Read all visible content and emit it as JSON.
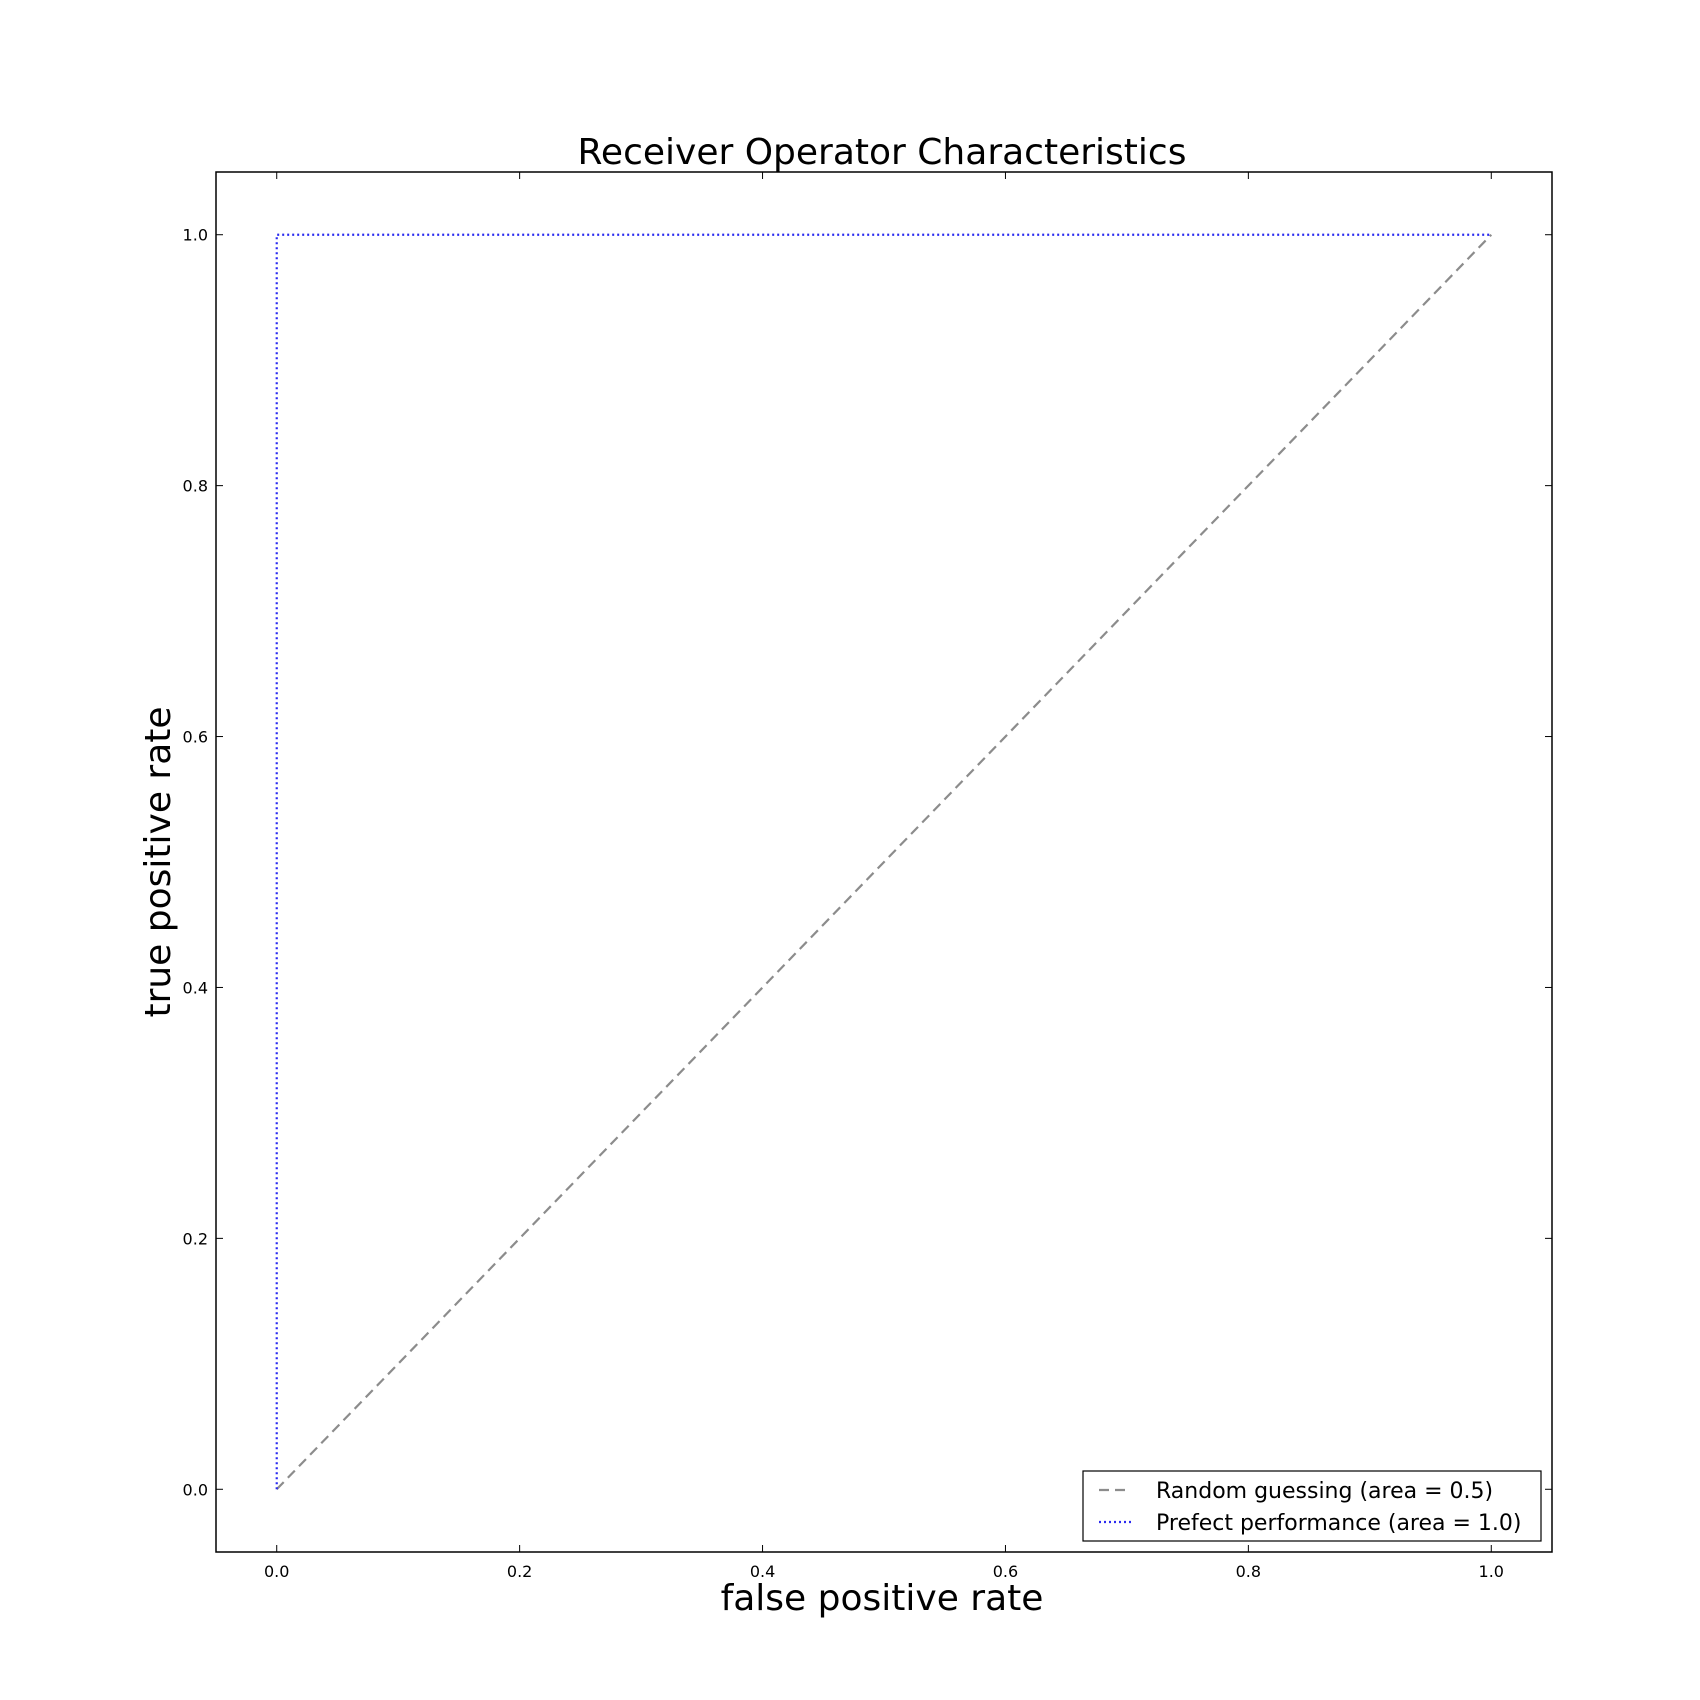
{
  "chart_data": {
    "type": "line",
    "title": "Receiver Operator Characteristics",
    "xlabel": "false positive rate",
    "ylabel": "true positive rate",
    "xlim": [
      -0.05,
      1.05
    ],
    "ylim": [
      -0.05,
      1.05
    ],
    "xticks": [
      {
        "value": 0.0,
        "label": "0.0"
      },
      {
        "value": 0.2,
        "label": "0.2"
      },
      {
        "value": 0.4,
        "label": "0.4"
      },
      {
        "value": 0.6,
        "label": "0.6"
      },
      {
        "value": 0.8,
        "label": "0.8"
      },
      {
        "value": 1.0,
        "label": "1.0"
      }
    ],
    "yticks": [
      {
        "value": 0.0,
        "label": "0.0"
      },
      {
        "value": 0.2,
        "label": "0.2"
      },
      {
        "value": 0.4,
        "label": "0.4"
      },
      {
        "value": 0.6,
        "label": "0.6"
      },
      {
        "value": 0.8,
        "label": "0.8"
      },
      {
        "value": 1.0,
        "label": "1.0"
      }
    ],
    "grid": false,
    "legend_position": "lower-right",
    "series": [
      {
        "name": "Random guessing (area = 0.5)",
        "x": [
          0.0,
          1.0
        ],
        "y": [
          0.0,
          1.0
        ],
        "color": "#8c8c8c",
        "style": "dashed"
      },
      {
        "name": "Prefect performance (area = 1.0)",
        "x": [
          0.0,
          0.0,
          1.0
        ],
        "y": [
          0.0,
          1.0,
          1.0
        ],
        "color": "#2a2af0",
        "style": "dotted"
      }
    ]
  }
}
